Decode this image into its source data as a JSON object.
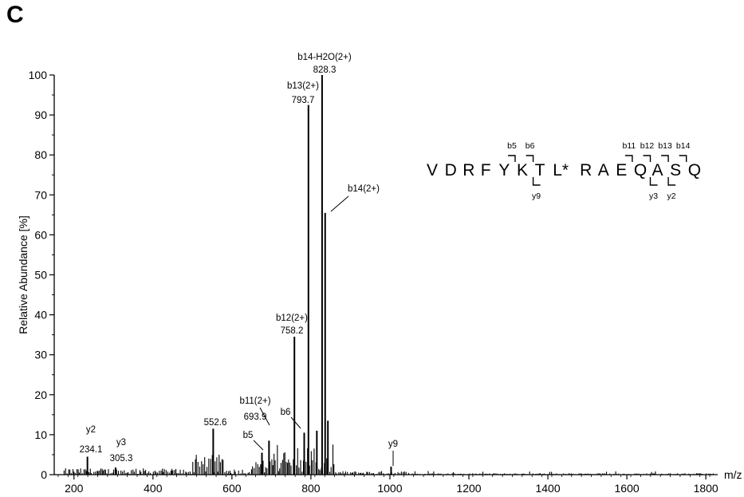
{
  "figure": {
    "panel_letter": "C"
  },
  "chart_data": {
    "type": "bar",
    "title": "",
    "xlabel": "m/z",
    "ylabel": "Relative Abundance [%]",
    "xlim": [
      150,
      1830
    ],
    "ylim": [
      0,
      100
    ],
    "x_ticks": [
      200,
      400,
      600,
      800,
      1000,
      1200,
      1400,
      1600,
      1800
    ],
    "y_ticks": [
      0,
      10,
      20,
      30,
      40,
      50,
      60,
      70,
      80,
      90,
      100
    ],
    "grid": false,
    "major_peaks": [
      {
        "mz": 234.1,
        "intensity": 4.5
      },
      {
        "mz": 305.3,
        "intensity": 1.8
      },
      {
        "mz": 552.6,
        "intensity": 11.5
      },
      {
        "mz": 676.0,
        "intensity": 5.5
      },
      {
        "mz": 693.9,
        "intensity": 8.5
      },
      {
        "mz": 758.2,
        "intensity": 34.5
      },
      {
        "mz": 783.0,
        "intensity": 10.5
      },
      {
        "mz": 793.7,
        "intensity": 92.5
      },
      {
        "mz": 815.0,
        "intensity": 11.0
      },
      {
        "mz": 828.3,
        "intensity": 100
      },
      {
        "mz": 836.0,
        "intensity": 65.5
      },
      {
        "mz": 843.0,
        "intensity": 13.5
      },
      {
        "mz": 1003.0,
        "intensity": 2.0
      }
    ],
    "annotations": [
      {
        "id": "y2",
        "lines": [
          "y2",
          "234.1"
        ]
      },
      {
        "id": "y3",
        "lines": [
          "y3",
          "305.3"
        ]
      },
      {
        "id": "p552",
        "lines": [
          "552.6"
        ]
      },
      {
        "id": "b5",
        "lines": [
          "b5"
        ]
      },
      {
        "id": "b11",
        "lines": [
          "b11(2+)",
          "693.9"
        ]
      },
      {
        "id": "b6",
        "lines": [
          "b6"
        ]
      },
      {
        "id": "b12",
        "lines": [
          "b12(2+)",
          "758.2"
        ]
      },
      {
        "id": "b13",
        "lines": [
          "b13(2+)",
          "793.7"
        ]
      },
      {
        "id": "b14h2o",
        "lines": [
          "b14-H2O(2+)",
          "828.3"
        ]
      },
      {
        "id": "b14",
        "lines": [
          "b14(2+)"
        ]
      },
      {
        "id": "y9",
        "lines": [
          "y9"
        ]
      }
    ],
    "sequence_annotation": {
      "residues": [
        "V",
        "D",
        "R",
        "F",
        "Y",
        "K",
        "T",
        "L*",
        "R",
        "A",
        "E",
        "Q",
        "A",
        "S",
        "Q"
      ],
      "b_ions": [
        {
          "label": "b5",
          "after_index": 4
        },
        {
          "label": "b6",
          "after_index": 5
        },
        {
          "label": "b11",
          "after_index": 10
        },
        {
          "label": "b12",
          "after_index": 11
        },
        {
          "label": "b13",
          "after_index": 12
        },
        {
          "label": "b14",
          "after_index": 13
        }
      ],
      "y_ions": [
        {
          "label": "y9",
          "after_index": 5
        },
        {
          "label": "y3",
          "after_index": 11
        },
        {
          "label": "y2",
          "after_index": 12
        }
      ]
    }
  }
}
